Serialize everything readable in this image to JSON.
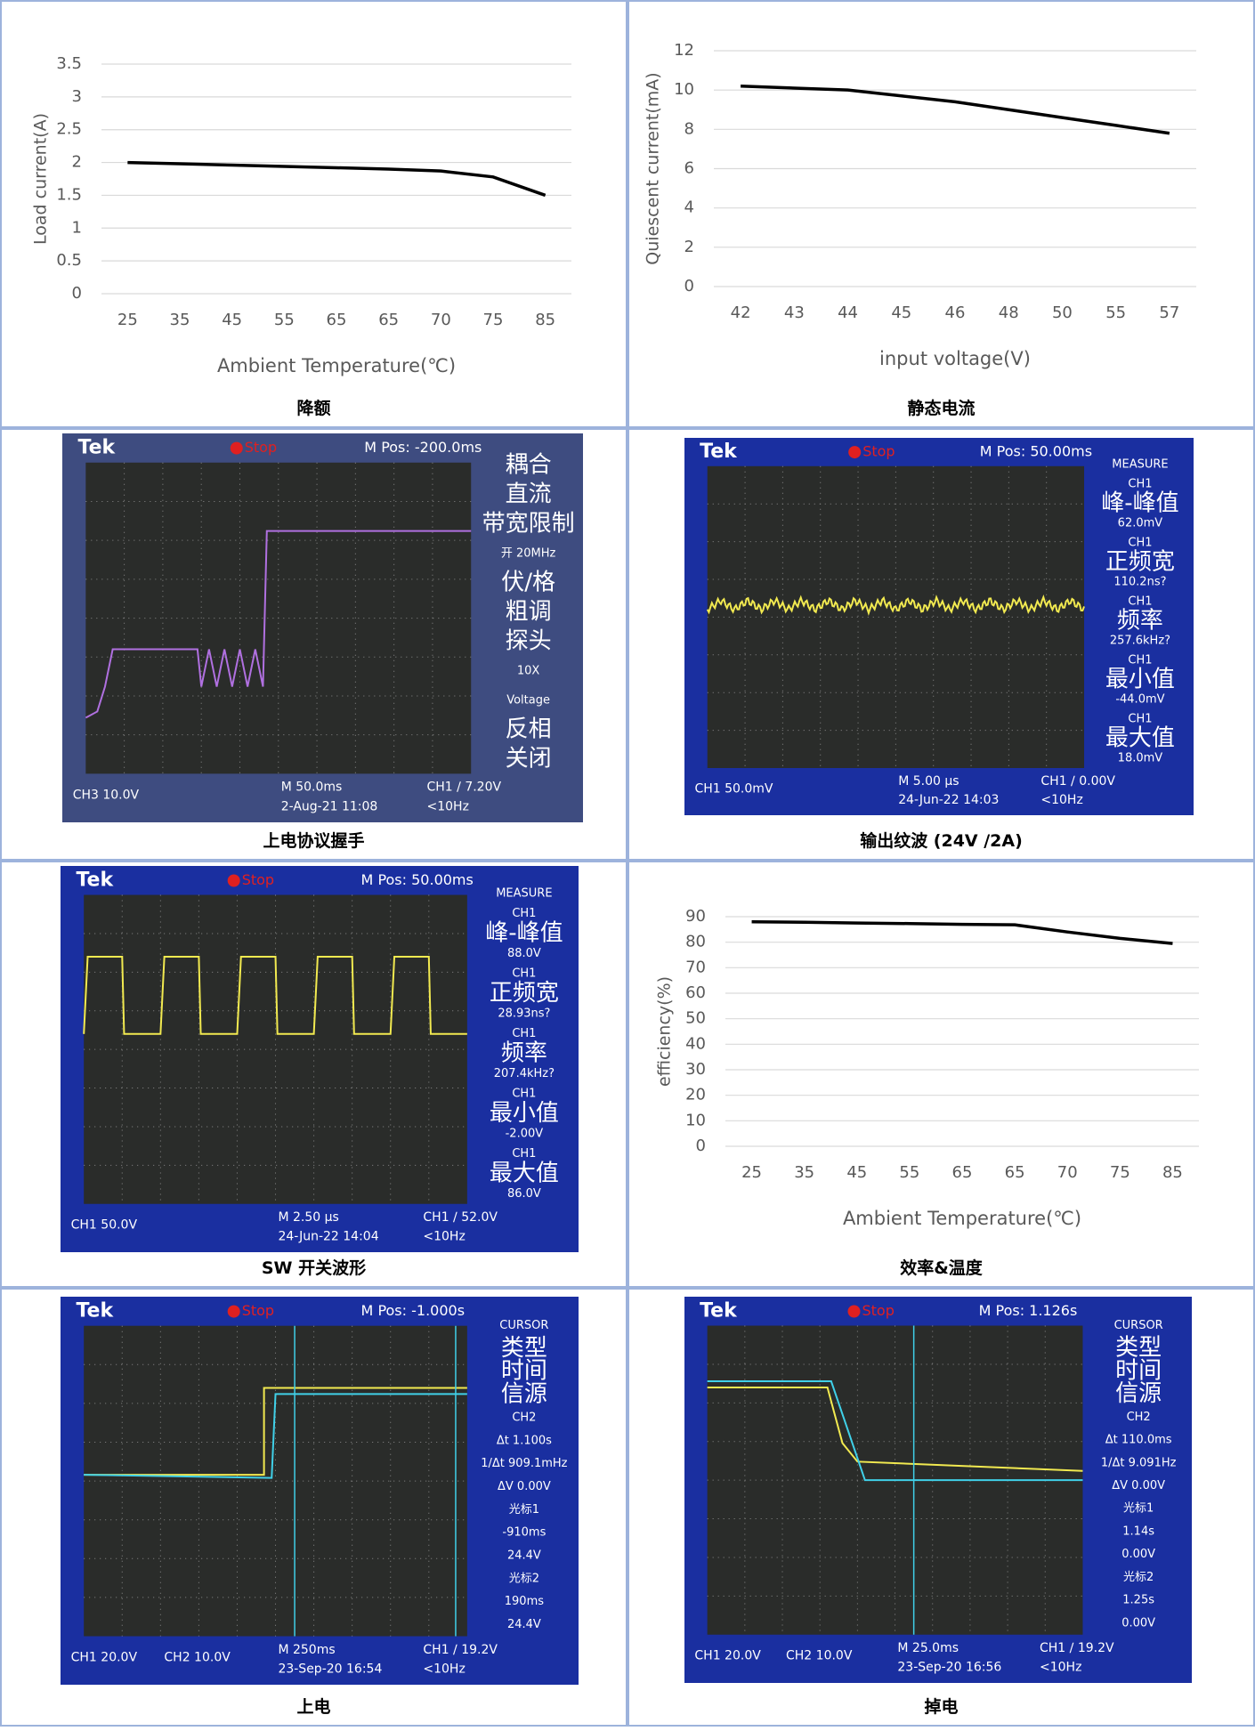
{
  "cells": [
    {
      "caption": "降额",
      "chart": {
        "type": "line",
        "y_label": "Load current(A)",
        "x_label": "Ambient Temperature(℃)",
        "categories": [
          "25",
          "35",
          "45",
          "55",
          "65",
          "65",
          "70",
          "75",
          "85"
        ],
        "values": [
          2.0,
          1.98,
          1.96,
          1.94,
          1.92,
          1.9,
          1.87,
          1.78,
          1.5
        ],
        "color": "#000000",
        "ylim": [
          0,
          3.5
        ],
        "yticks": [
          0,
          0.5,
          1,
          1.5,
          2,
          2.5,
          3,
          3.5
        ],
        "grid": true
      }
    },
    {
      "caption": "静态电流",
      "chart": {
        "type": "line",
        "y_label": "Quiescent current(mA)",
        "x_label": "input voltage(V)",
        "categories": [
          "42",
          "43",
          "44",
          "45",
          "46",
          "48",
          "50",
          "55",
          "57"
        ],
        "values": [
          10.2,
          10.1,
          10.0,
          9.7,
          9.4,
          9.0,
          8.6,
          8.2,
          7.8
        ],
        "color": "#000000",
        "ylim": [
          0,
          12
        ],
        "yticks": [
          0,
          2,
          4,
          6,
          8,
          10,
          12
        ],
        "grid": true
      }
    },
    {
      "caption": "上电协议握手",
      "scope": {
        "header": [
          "Tek",
          "Stop",
          "M Pos: -200.0ms"
        ],
        "side": [
          "耦合",
          "直流",
          "带宽限制",
          "开 20MHz",
          "伏/格",
          "粗调",
          "探头",
          "10X",
          "Voltage",
          "反相",
          "关闭"
        ],
        "footer": [
          "CH3 10.0V",
          "M 50.0ms",
          "2-Aug-21 11:08",
          "CH1 ∕ 7.20V",
          "<10Hz"
        ]
      }
    },
    {
      "caption": "输出纹波 (24V /2A)",
      "scope": {
        "header": [
          "Tek",
          "Stop",
          "M Pos: 50.00ms"
        ],
        "side": [
          "MEASURE",
          "CH1",
          "峰-峰值",
          "62.0mV",
          "CH1",
          "正频宽",
          "110.2ns?",
          "CH1",
          "频率",
          "257.6kHz?",
          "CH1",
          "最小值",
          "-44.0mV",
          "CH1",
          "最大值",
          "18.0mV"
        ],
        "footer": [
          "CH1 50.0mV",
          "M 5.00 µs",
          "24-Jun-22 14:03",
          "CH1 ∕ 0.00V",
          "<10Hz"
        ]
      }
    },
    {
      "caption": "SW 开关波形",
      "scope": {
        "header": [
          "Tek",
          "Stop",
          "M Pos: 50.00ms"
        ],
        "side": [
          "MEASURE",
          "CH1",
          "峰-峰值",
          "88.0V",
          "CH1",
          "正频宽",
          "28.93ns?",
          "CH1",
          "频率",
          "207.4kHz?",
          "CH1",
          "最小值",
          "-2.00V",
          "CH1",
          "最大值",
          "86.0V"
        ],
        "footer": [
          "CH1 50.0V",
          "M 2.50 µs",
          "24-Jun-22 14:04",
          "CH1 ∕ 52.0V",
          "<10Hz"
        ]
      }
    },
    {
      "caption": "效率&温度",
      "chart": {
        "type": "line",
        "y_label": "efficiency(%)",
        "x_label": "Ambient Temperature(℃)",
        "categories": [
          "25",
          "35",
          "45",
          "55",
          "65",
          "65",
          "70",
          "75",
          "85"
        ],
        "values": [
          88,
          87.8,
          87.5,
          87.3,
          87,
          86.8,
          84,
          81.5,
          79.5
        ],
        "color": "#000000",
        "ylim": [
          0,
          90
        ],
        "yticks": [
          0,
          10,
          20,
          30,
          40,
          50,
          60,
          70,
          80,
          90
        ],
        "grid": true
      }
    },
    {
      "caption": "上电",
      "scope": {
        "header": [
          "Tek",
          "Stop",
          "M Pos: -1.000s"
        ],
        "side": [
          "CURSOR",
          "类型",
          "时间",
          "信源",
          "CH2",
          "Δt 1.100s",
          "1/Δt 909.1mHz",
          "ΔV 0.00V",
          "光标1",
          "-910ms",
          "24.4V",
          "光标2",
          "190ms",
          "24.4V"
        ],
        "footer": [
          "CH1 20.0V",
          "CH2 10.0V",
          "M 250ms",
          "23-Sep-20 16:54",
          "CH1 ∕ 19.2V",
          "<10Hz"
        ]
      }
    },
    {
      "caption": "掉电",
      "scope": {
        "header": [
          "Tek",
          "Stop",
          "M Pos: 1.126s"
        ],
        "side": [
          "CURSOR",
          "类型",
          "时间",
          "信源",
          "CH2",
          "Δt 110.0ms",
          "1/Δt 9.091Hz",
          "ΔV 0.00V",
          "光标1",
          "1.14s",
          "0.00V",
          "光标2",
          "1.25s",
          "0.00V"
        ],
        "footer": [
          "CH1 20.0V",
          "CH2 10.0V",
          "M 25.0ms",
          "23-Sep-20 16:56",
          "CH1 ∕ 19.2V",
          "<10Hz"
        ]
      }
    }
  ]
}
